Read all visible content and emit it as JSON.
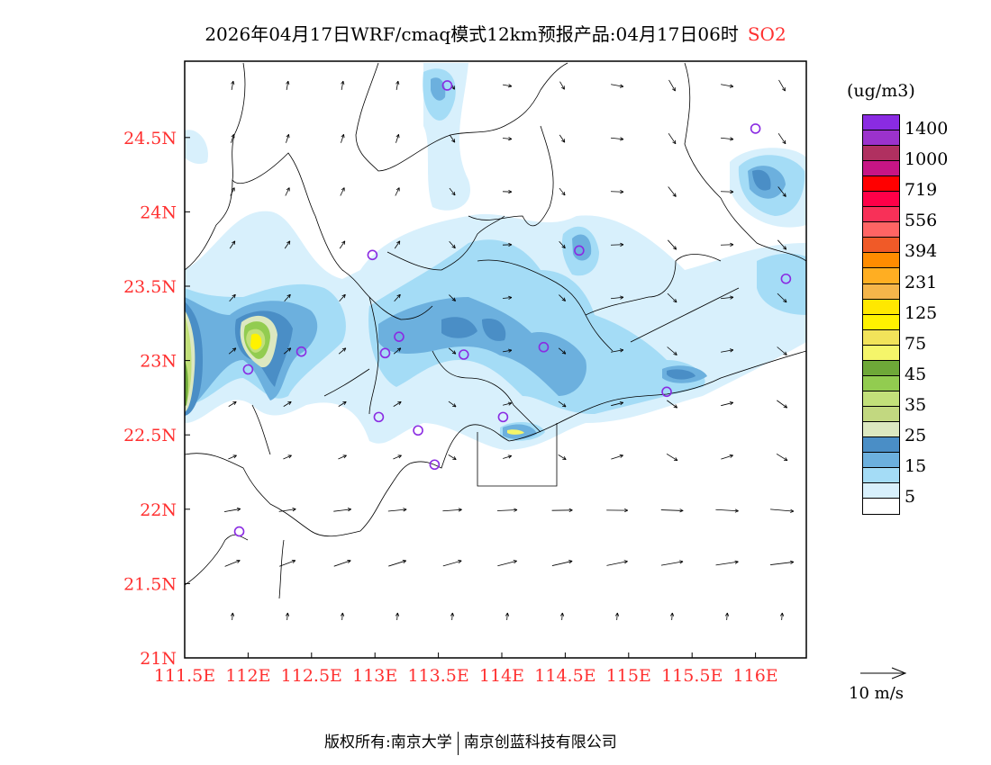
{
  "title": {
    "main": "2026年04月17日WRF/cmaq模式12km预报产品:04月17日06时",
    "species": "SO2"
  },
  "axes": {
    "lon_ticks": [
      "111.5E",
      "112E",
      "112.5E",
      "113E",
      "113.5E",
      "114E",
      "114.5E",
      "115E",
      "115.5E",
      "116E"
    ],
    "lon_values": [
      111.5,
      112,
      112.5,
      113,
      113.5,
      114,
      114.5,
      115,
      115.5,
      116
    ],
    "lat_ticks": [
      "21N",
      "21.5N",
      "22N",
      "22.5N",
      "23N",
      "23.5N",
      "24N",
      "24.5N"
    ],
    "lat_values": [
      21,
      21.5,
      22,
      22.5,
      23,
      23.5,
      24,
      24.5
    ],
    "lon_range": [
      111.5,
      116.4
    ],
    "lat_range": [
      21,
      25.0
    ]
  },
  "colorbar": {
    "unit": "(ug/m3)",
    "colors": [
      "#8a2be2",
      "#9b32cc",
      "#b03060",
      "#c71585",
      "#ff0000",
      "#ff0048",
      "#f83058",
      "#ff6464",
      "#f05a28",
      "#ff8c00",
      "#ffae22",
      "#f5b54a",
      "#ffe800",
      "#fff200",
      "#f2e35a",
      "#f5f56a",
      "#6ea838",
      "#92cc50",
      "#c2e07a",
      "#c2d880",
      "#dce8c0",
      "#4a8ec6",
      "#6cb0de",
      "#a4dcf6",
      "#d8f0fc",
      "#ffffff"
    ],
    "labels": [
      "1400",
      "1000",
      "719",
      "556",
      "394",
      "231",
      "125",
      "75",
      "45",
      "35",
      "25",
      "15",
      "5"
    ]
  },
  "wind_reference": "10 m/s",
  "stations": [
    [
      113.57,
      24.85
    ],
    [
      116.0,
      24.56
    ],
    [
      112.98,
      23.71
    ],
    [
      114.61,
      23.74
    ],
    [
      116.24,
      23.55
    ],
    [
      113.19,
      23.16
    ],
    [
      113.08,
      23.05
    ],
    [
      112.42,
      23.06
    ],
    [
      112.0,
      22.94
    ],
    [
      113.7,
      23.04
    ],
    [
      114.33,
      23.09
    ],
    [
      115.3,
      22.79
    ],
    [
      113.03,
      22.62
    ],
    [
      113.34,
      22.53
    ],
    [
      114.01,
      22.62
    ],
    [
      113.47,
      22.3
    ],
    [
      111.93,
      21.85
    ]
  ],
  "footer": {
    "left": "版权所有:南京大学",
    "right": "南京创蓝科技有限公司"
  }
}
